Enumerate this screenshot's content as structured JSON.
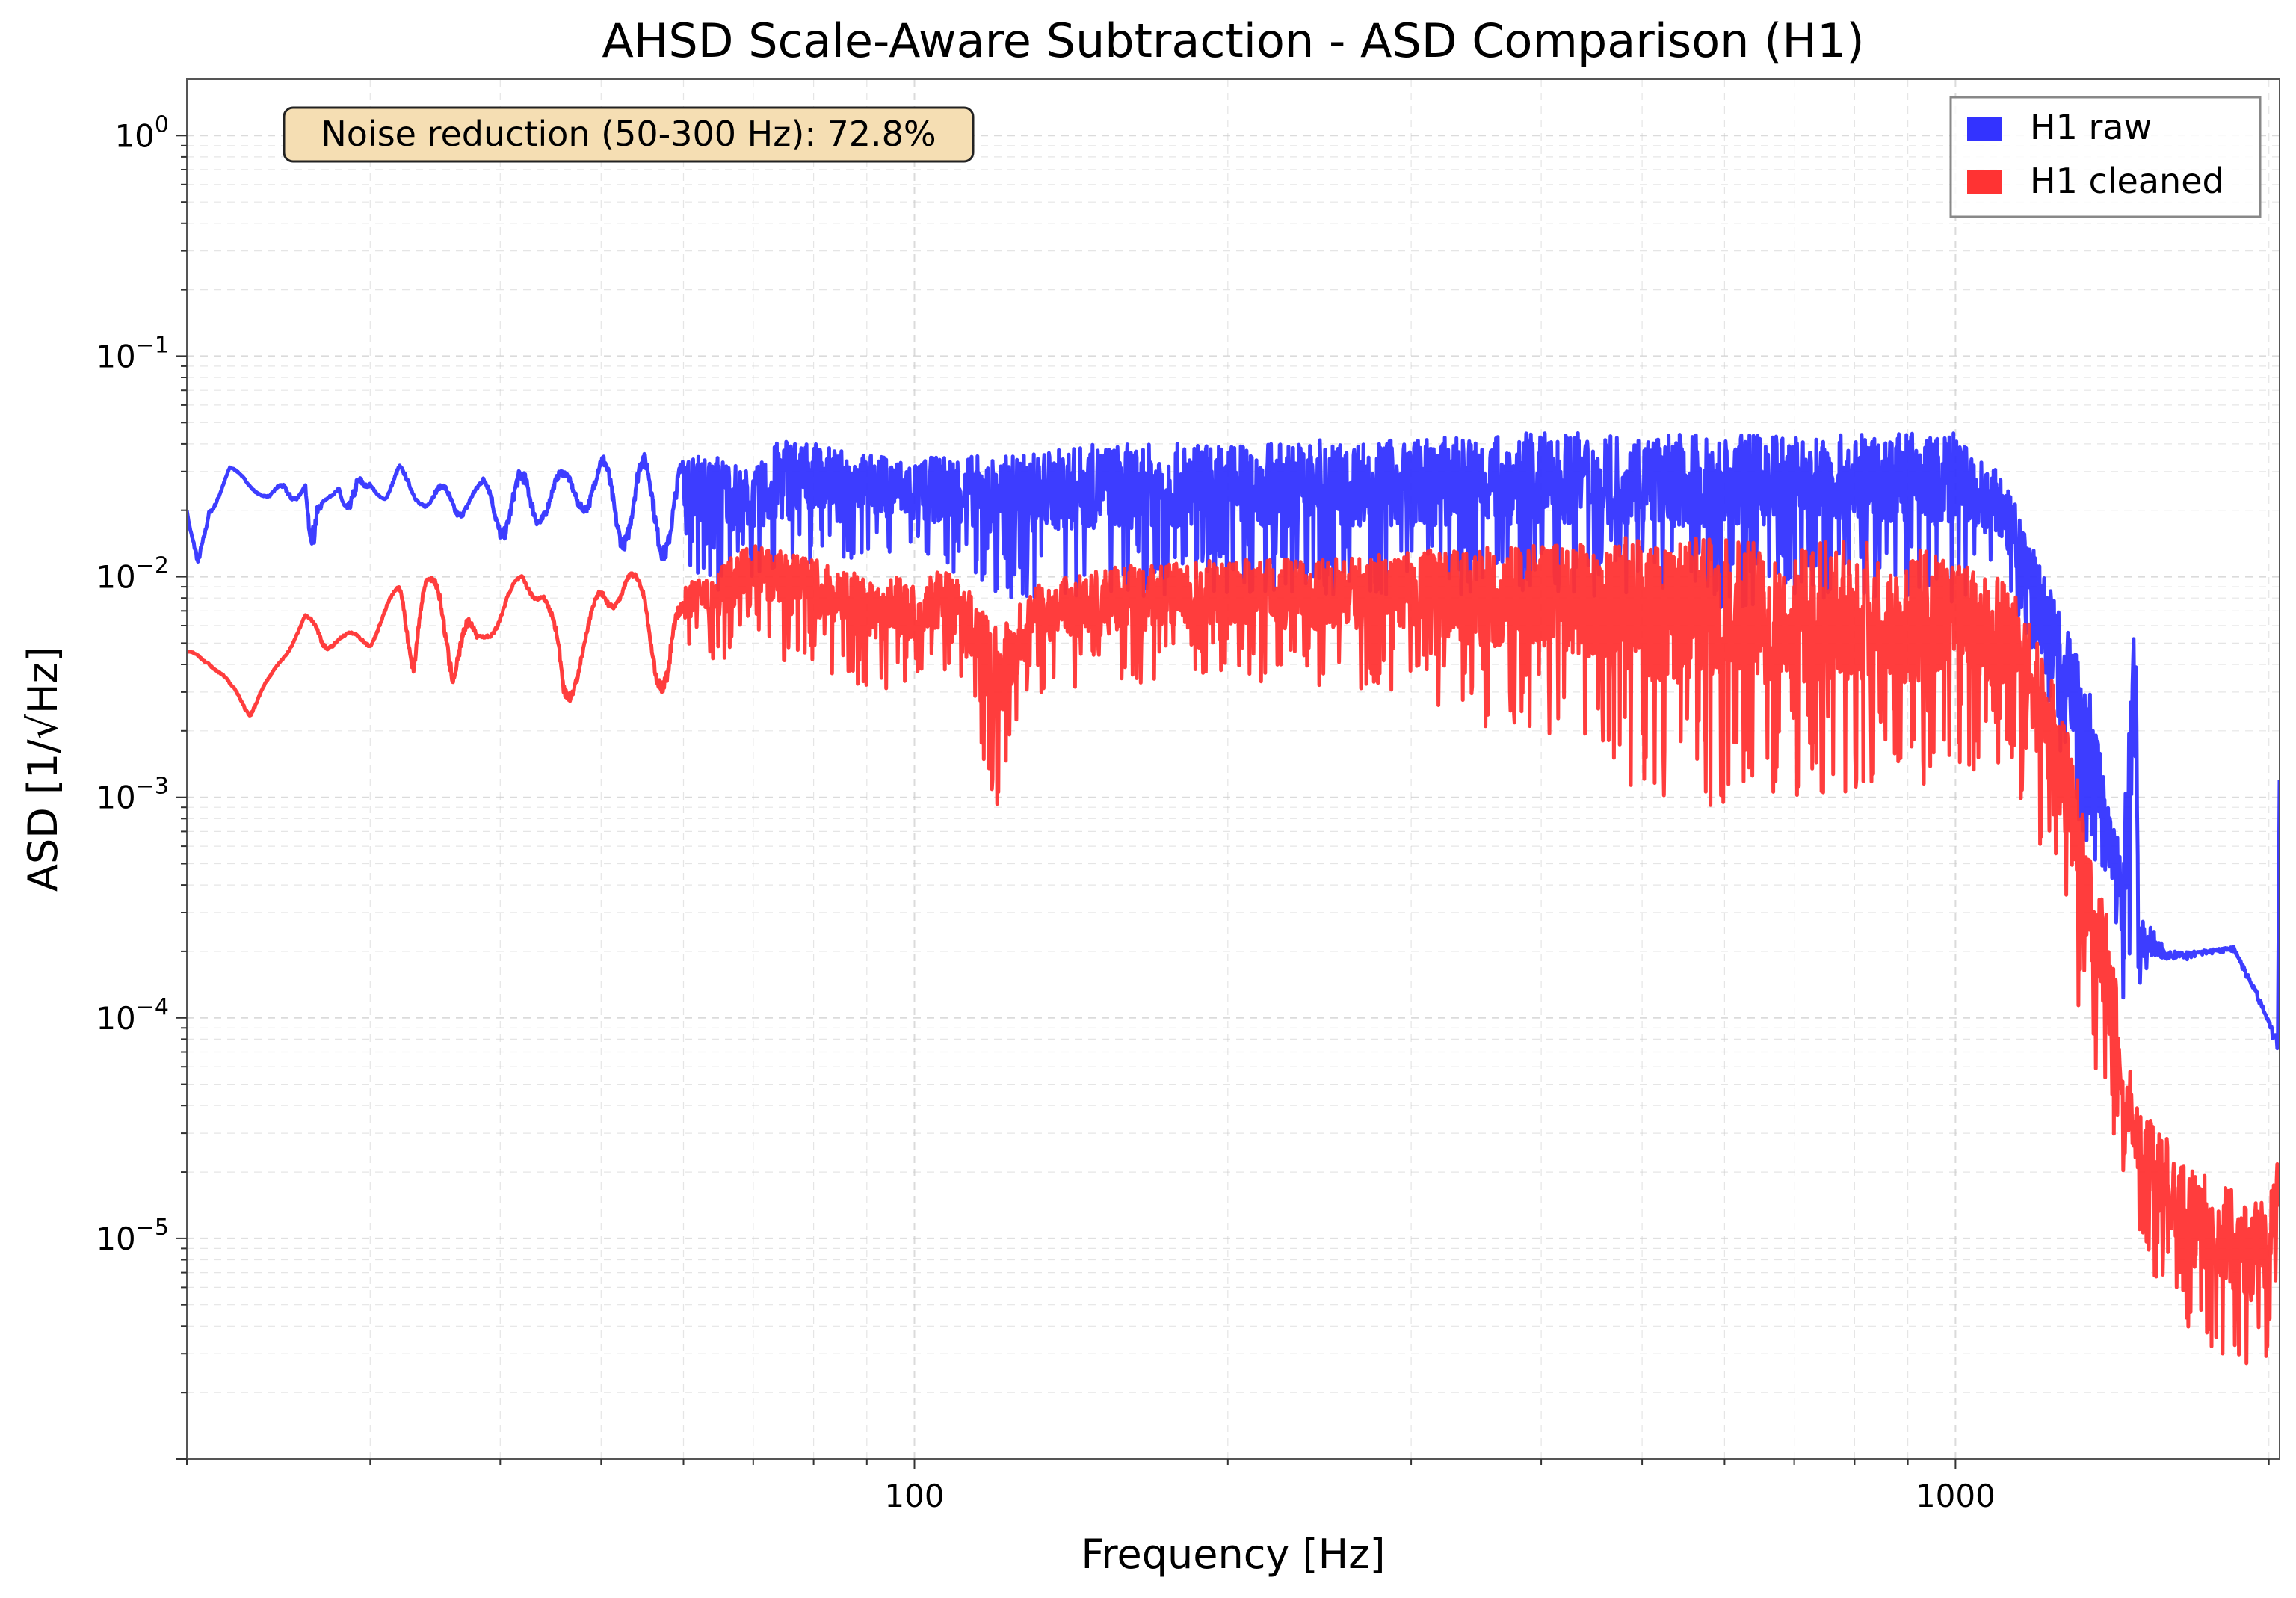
{
  "chart_data": {
    "type": "line",
    "title": "AHSD Scale-Aware Subtraction - ASD Comparison (H1)",
    "xlabel": "Frequency [Hz]",
    "ylabel": "ASD [1/√Hz]",
    "xscale": "log",
    "yscale": "log",
    "xlim": [
      20,
      2048
    ],
    "ylim": [
      1e-06,
      1.8
    ],
    "grid": true,
    "legend_position": "top-right",
    "annotation": "Noise reduction (50-300 Hz): 72.8%",
    "x_ticks": [
      {
        "value": 100,
        "label": "100"
      },
      {
        "value": 1000,
        "label": "1000"
      }
    ],
    "y_ticks": [
      {
        "value": 1,
        "base": "10",
        "exp": "0"
      },
      {
        "value": 0.1,
        "base": "10",
        "exp": "−1"
      },
      {
        "value": 0.01,
        "base": "10",
        "exp": "−2"
      },
      {
        "value": 0.001,
        "base": "10",
        "exp": "−3"
      },
      {
        "value": 0.0001,
        "base": "10",
        "exp": "−4"
      },
      {
        "value": 1e-05,
        "base": "10",
        "exp": "−5"
      }
    ],
    "series": [
      {
        "name": "H1 raw",
        "color": "#3333ff",
        "envelope": [
          [
            20,
            0.02,
            0.02
          ],
          [
            20.5,
            0.007,
            0.012
          ],
          [
            21,
            0.018,
            0.022
          ],
          [
            22,
            0.03,
            0.032
          ],
          [
            23,
            0.025,
            0.027
          ],
          [
            24,
            0.022,
            0.024
          ],
          [
            25,
            0.02,
            0.028
          ],
          [
            26,
            0.025,
            0.028
          ],
          [
            26.5,
            0.004,
            0.02
          ],
          [
            27,
            0.02,
            0.022
          ],
          [
            28,
            0.025,
            0.028
          ],
          [
            29,
            0.012,
            0.028
          ],
          [
            30,
            0.025,
            0.028
          ],
          [
            31,
            0.022,
            0.024
          ],
          [
            32,
            0.025,
            0.032
          ],
          [
            34,
            0.02,
            0.024
          ],
          [
            36,
            0.018,
            0.028
          ],
          [
            38,
            0.02,
            0.026
          ],
          [
            40,
            0.015,
            0.035
          ],
          [
            42,
            0.012,
            0.03
          ],
          [
            44,
            0.018,
            0.032
          ],
          [
            46,
            0.02,
            0.03
          ],
          [
            48,
            0.02,
            0.035
          ],
          [
            50,
            0.015,
            0.035
          ],
          [
            55,
            0.012,
            0.036
          ],
          [
            60,
            0.012,
            0.035
          ],
          [
            65,
            0.008,
            0.036
          ],
          [
            70,
            0.01,
            0.03
          ],
          [
            75,
            0.008,
            0.045
          ],
          [
            80,
            0.012,
            0.04
          ],
          [
            90,
            0.012,
            0.036
          ],
          [
            100,
            0.01,
            0.034
          ],
          [
            110,
            0.01,
            0.036
          ],
          [
            120,
            0.008,
            0.035
          ],
          [
            150,
            0.008,
            0.04
          ],
          [
            200,
            0.008,
            0.04
          ],
          [
            250,
            0.008,
            0.042
          ],
          [
            300,
            0.008,
            0.042
          ],
          [
            400,
            0.008,
            0.045
          ],
          [
            500,
            0.008,
            0.045
          ],
          [
            600,
            0.007,
            0.044
          ],
          [
            700,
            0.008,
            0.044
          ],
          [
            800,
            0.008,
            0.044
          ],
          [
            900,
            0.008,
            0.045
          ],
          [
            1000,
            0.007,
            0.045
          ],
          [
            1050,
            0.008,
            0.035
          ],
          [
            1100,
            0.008,
            0.03
          ],
          [
            1150,
            0.006,
            0.02
          ],
          [
            1200,
            0.004,
            0.012
          ],
          [
            1250,
            0.002,
            0.008
          ],
          [
            1300,
            0.0008,
            0.005
          ],
          [
            1350,
            0.0005,
            0.003
          ],
          [
            1400,
            0.0003,
            0.001
          ],
          [
            1430,
            0.00015,
            0.0007
          ],
          [
            1450,
            0.0001,
            0.0006
          ],
          [
            1470,
            0.0001,
            0.004
          ],
          [
            1490,
            0.0001,
            0.006
          ],
          [
            1500,
            0.00012,
            0.0003
          ],
          [
            1550,
            0.00015,
            0.00025
          ],
          [
            1600,
            0.00017,
            0.0002
          ],
          [
            1700,
            0.00019,
            0.0002
          ],
          [
            1850,
            0.0002,
            0.00021
          ],
          [
            1950,
            0.00012,
            0.00013
          ],
          [
            2040,
            7e-05,
            8e-05
          ],
          [
            2048,
            0.0012,
            0.0012
          ]
        ]
      },
      {
        "name": "H1 cleaned",
        "color": "#ff3333",
        "envelope": [
          [
            20,
            0.0044,
            0.0046
          ],
          [
            21,
            0.004,
            0.0045
          ],
          [
            22,
            0.003,
            0.0033
          ],
          [
            23,
            0.0023,
            0.0028
          ],
          [
            24,
            0.0032,
            0.0035
          ],
          [
            25,
            0.0045,
            0.005
          ],
          [
            26,
            0.0062,
            0.0068
          ],
          [
            27,
            0.0045,
            0.0058
          ],
          [
            28,
            0.005,
            0.0056
          ],
          [
            30,
            0.0048,
            0.0056
          ],
          [
            32,
            0.008,
            0.0095
          ],
          [
            33,
            0.0035,
            0.009
          ],
          [
            34,
            0.0085,
            0.01
          ],
          [
            36,
            0.0033,
            0.0095
          ],
          [
            38,
            0.0045,
            0.0055
          ],
          [
            40,
            0.006,
            0.0075
          ],
          [
            42,
            0.009,
            0.0108
          ],
          [
            44,
            0.0072,
            0.0095
          ],
          [
            46,
            0.0021,
            0.0045
          ],
          [
            48,
            0.004,
            0.0055
          ],
          [
            50,
            0.0065,
            0.0095
          ],
          [
            53,
            0.008,
            0.011
          ],
          [
            55,
            0.0065,
            0.0095
          ],
          [
            58,
            0.0018,
            0.005
          ],
          [
            60,
            0.005,
            0.009
          ],
          [
            65,
            0.004,
            0.0115
          ],
          [
            70,
            0.006,
            0.014
          ],
          [
            75,
            0.004,
            0.013
          ],
          [
            80,
            0.004,
            0.012
          ],
          [
            90,
            0.003,
            0.01
          ],
          [
            100,
            0.003,
            0.01
          ],
          [
            110,
            0.004,
            0.011
          ],
          [
            120,
            0.0009,
            0.006
          ],
          [
            130,
            0.003,
            0.009
          ],
          [
            150,
            0.003,
            0.011
          ],
          [
            200,
            0.0035,
            0.012
          ],
          [
            250,
            0.003,
            0.012
          ],
          [
            300,
            0.003,
            0.013
          ],
          [
            350,
            0.002,
            0.014
          ],
          [
            400,
            0.002,
            0.014
          ],
          [
            450,
            0.0015,
            0.015
          ],
          [
            500,
            0.001,
            0.015
          ],
          [
            600,
            0.0009,
            0.015
          ],
          [
            700,
            0.001,
            0.014
          ],
          [
            800,
            0.001,
            0.015
          ],
          [
            900,
            0.001,
            0.014
          ],
          [
            1000,
            0.0012,
            0.012
          ],
          [
            1100,
            0.0012,
            0.01
          ],
          [
            1150,
            0.001,
            0.008
          ],
          [
            1200,
            0.0006,
            0.005
          ],
          [
            1250,
            0.0004,
            0.003
          ],
          [
            1300,
            0.00015,
            0.0015
          ],
          [
            1350,
            5e-05,
            0.0006
          ],
          [
            1400,
            3e-05,
            0.0003
          ],
          [
            1450,
            2e-05,
            8e-05
          ],
          [
            1500,
            8e-06,
            4e-05
          ],
          [
            1600,
            5e-06,
            3e-05
          ],
          [
            1700,
            3e-06,
            2e-05
          ],
          [
            1800,
            3e-06,
            1.8e-05
          ],
          [
            1900,
            2e-06,
            1.5e-05
          ],
          [
            2000,
            3e-06,
            1.5e-05
          ],
          [
            2048,
            1e-05,
            2.5e-05
          ]
        ]
      }
    ]
  }
}
